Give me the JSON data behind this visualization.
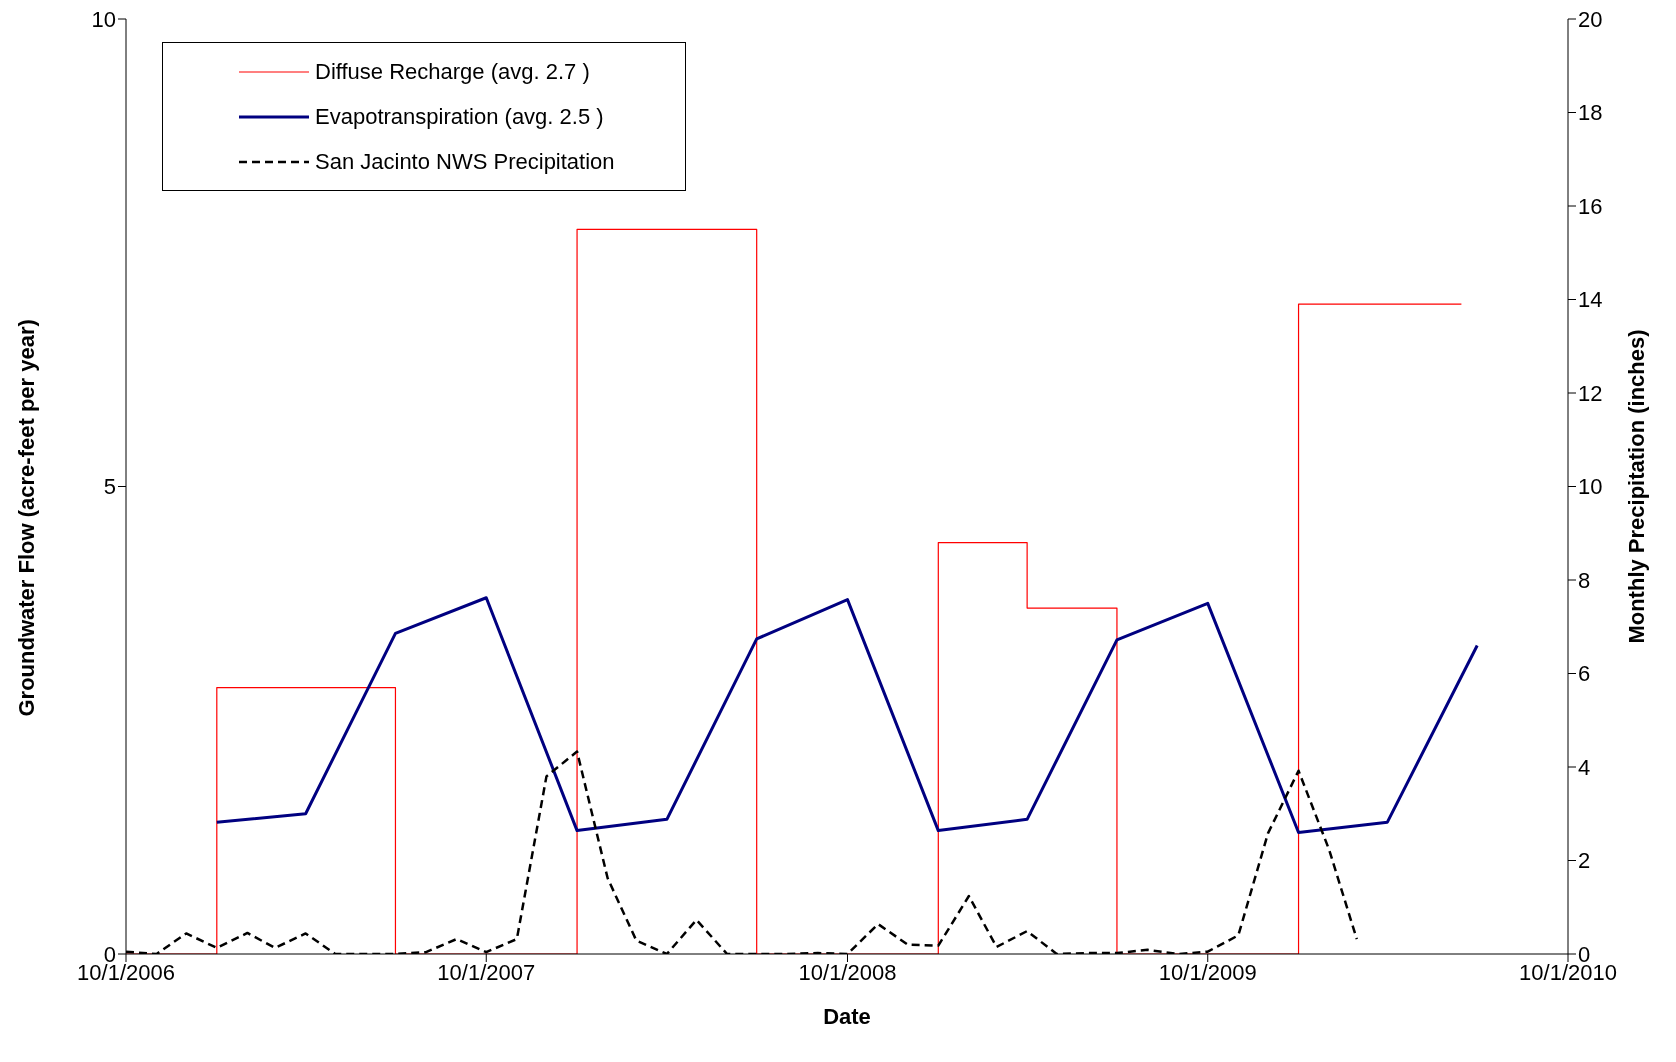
{
  "chart_data": {
    "type": "line",
    "xlabel": "Date",
    "ylabel": "Groundwater Flow (acre-feet per year)",
    "y2label": "Monthly Precipitation (inches)",
    "xlim": [
      "2006-10-01",
      "2010-10-01"
    ],
    "xticks": [
      {
        "value": "2006-10-01",
        "label": "10/1/2006"
      },
      {
        "value": "2007-10-01",
        "label": "10/1/2007"
      },
      {
        "value": "2008-10-01",
        "label": "10/1/2008"
      },
      {
        "value": "2009-10-01",
        "label": "10/1/2009"
      },
      {
        "value": "2010-10-01",
        "label": "10/1/2010"
      }
    ],
    "ylim": [
      0,
      10
    ],
    "yticks": [
      0,
      5,
      10
    ],
    "y2lim": [
      0,
      20
    ],
    "y2ticks": [
      0,
      2,
      4,
      6,
      8,
      10,
      12,
      14,
      16,
      18,
      20
    ],
    "grid": false,
    "legend": "top left",
    "marker": "none",
    "series": [
      {
        "name": "Diffuse Recharge (avg. 2.7 )",
        "type": "step",
        "color": "#ff0000",
        "line_style": "solid",
        "x": [
          "2006-10-01",
          "2007-01-01",
          "2007-07-01",
          "2008-01-01",
          "2008-07-01",
          "2009-01-01",
          "2009-04-01",
          "2009-07-01",
          "2010-01-01",
          "2010-06-15"
        ],
        "values": [
          0,
          2.85,
          0,
          7.75,
          0,
          4.4,
          3.7,
          0,
          6.95,
          6.95
        ]
      },
      {
        "name": "Evapotranspiration (avg. 2.5 )",
        "type": "line",
        "color": "#000080",
        "line_style": "solid",
        "x": [
          "2007-01-01",
          "2007-04-01",
          "2007-07-01",
          "2007-10-01",
          "2008-01-01",
          "2008-04-01",
          "2008-07-01",
          "2008-10-01",
          "2009-01-01",
          "2009-04-01",
          "2009-07-01",
          "2009-10-01",
          "2010-01-01",
          "2010-04-01",
          "2010-07-01"
        ],
        "values": [
          1.41,
          1.5,
          3.43,
          3.81,
          1.32,
          1.44,
          3.37,
          3.79,
          1.32,
          1.44,
          3.36,
          3.75,
          1.3,
          1.41,
          3.3
        ]
      },
      {
        "name": "San Jacinto NWS Precipitation",
        "type": "line",
        "axis": "y2",
        "color": "#000000",
        "line_style": "dashed",
        "x": [
          "2006-10-01",
          "2006-11-01",
          "2006-12-01",
          "2007-01-01",
          "2007-02-01",
          "2007-03-01",
          "2007-04-01",
          "2007-05-01",
          "2007-06-01",
          "2007-07-01",
          "2007-08-01",
          "2007-09-01",
          "2007-10-01",
          "2007-11-01",
          "2007-12-01",
          "2008-01-01",
          "2008-02-01",
          "2008-03-01",
          "2008-04-01",
          "2008-05-01",
          "2008-06-01",
          "2008-07-01",
          "2008-08-01",
          "2008-09-01",
          "2008-10-01",
          "2008-11-01",
          "2008-12-01",
          "2009-01-01",
          "2009-02-01",
          "2009-03-01",
          "2009-04-01",
          "2009-05-01",
          "2009-06-01",
          "2009-07-01",
          "2009-08-01",
          "2009-09-01",
          "2009-10-01",
          "2009-11-01",
          "2009-12-01",
          "2010-01-01",
          "2010-02-01",
          "2010-03-01"
        ],
        "values": [
          0.05,
          0,
          0.44,
          0.13,
          0.45,
          0.13,
          0.44,
          0,
          0,
          0,
          0.04,
          0.32,
          0.04,
          0.32,
          3.8,
          4.33,
          1.62,
          0.29,
          0,
          0.73,
          0,
          0,
          0,
          0.02,
          0,
          0.64,
          0.2,
          0.18,
          1.24,
          0.15,
          0.49,
          0,
          0.02,
          0.02,
          0.09,
          0,
          0.05,
          0.4,
          2.58,
          3.92,
          2.23,
          0.32
        ]
      }
    ]
  }
}
